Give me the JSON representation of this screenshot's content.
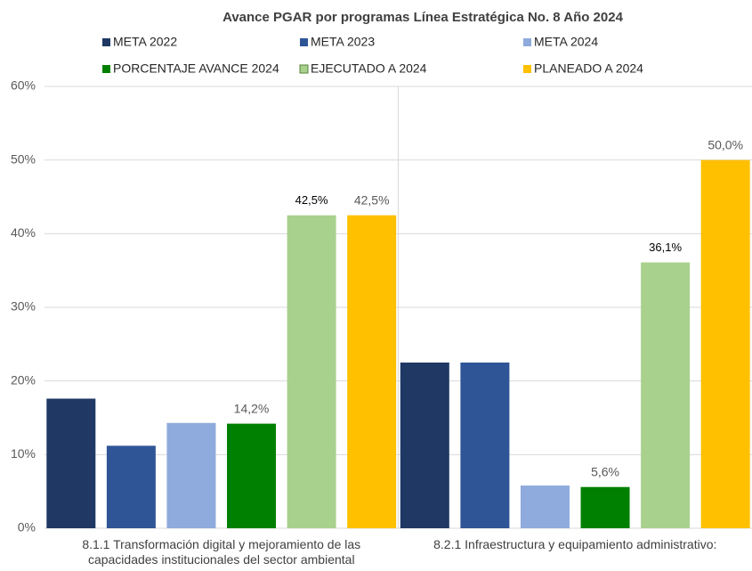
{
  "chart_data": {
    "type": "bar",
    "title": "Avance PGAR por programas  Línea Estratégica No. 8 Año 2024",
    "categories": [
      "8.1.1 Transformación digital y mejoramiento de las capacidades institucionales del sector ambiental",
      "8.2.1 Infraestructura y equipamiento administrativo:"
    ],
    "series": [
      {
        "name": "META  2022",
        "color": "#1f3864",
        "values": [
          17.6,
          22.5
        ]
      },
      {
        "name": "META   2023",
        "color": "#2f5597",
        "values": [
          11.2,
          22.5
        ]
      },
      {
        "name": "META    2024",
        "color": "#8faadc",
        "values": [
          14.3,
          5.8
        ]
      },
      {
        "name": "PORCENTAJE AVANCE 2024",
        "color": "#008000",
        "values": [
          14.2,
          5.6
        ],
        "value_labels": [
          "14,2%",
          "5,6%"
        ]
      },
      {
        "name": "EJECUTADO A 2024",
        "color": "#a9d18e",
        "values": [
          42.5,
          36.1
        ],
        "value_labels": [
          "42,5%",
          "36,1%"
        ]
      },
      {
        "name": "PLANEADO A 2024",
        "color": "#ffc000",
        "values": [
          42.5,
          50.0
        ],
        "value_labels": [
          "42,5%",
          "50,0%"
        ]
      }
    ],
    "ylim": [
      0,
      60
    ],
    "yticks": [
      {
        "value": 0,
        "label": "0%"
      },
      {
        "value": 10,
        "label": "10%"
      },
      {
        "value": 20,
        "label": "20%"
      },
      {
        "value": 30,
        "label": "30%"
      },
      {
        "value": 40,
        "label": "40%"
      },
      {
        "value": 50,
        "label": "50%"
      },
      {
        "value": 60,
        "label": "60%"
      }
    ],
    "grid": true
  }
}
